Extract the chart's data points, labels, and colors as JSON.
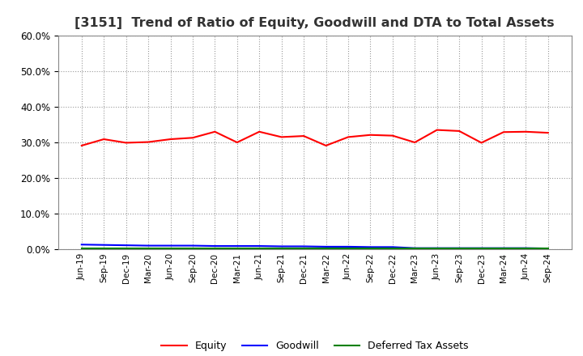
{
  "title": "[3151]  Trend of Ratio of Equity, Goodwill and DTA to Total Assets",
  "x_labels": [
    "Jun-19",
    "Sep-19",
    "Dec-19",
    "Mar-20",
    "Jun-20",
    "Sep-20",
    "Dec-20",
    "Mar-21",
    "Jun-21",
    "Sep-21",
    "Dec-21",
    "Mar-22",
    "Jun-22",
    "Sep-22",
    "Dec-22",
    "Mar-23",
    "Jun-23",
    "Sep-23",
    "Dec-23",
    "Mar-24",
    "Jun-24",
    "Sep-24"
  ],
  "equity": [
    0.291,
    0.309,
    0.299,
    0.301,
    0.309,
    0.313,
    0.33,
    0.3,
    0.33,
    0.315,
    0.318,
    0.291,
    0.315,
    0.321,
    0.319,
    0.3,
    0.335,
    0.332,
    0.299,
    0.329,
    0.33,
    0.327
  ],
  "goodwill": [
    0.013,
    0.012,
    0.011,
    0.01,
    0.01,
    0.01,
    0.009,
    0.009,
    0.009,
    0.008,
    0.008,
    0.007,
    0.007,
    0.006,
    0.006,
    0.003,
    0.003,
    0.003,
    0.003,
    0.003,
    0.003,
    0.002
  ],
  "dta": [
    0.003,
    0.003,
    0.003,
    0.003,
    0.003,
    0.003,
    0.003,
    0.003,
    0.003,
    0.003,
    0.003,
    0.003,
    0.003,
    0.003,
    0.003,
    0.003,
    0.003,
    0.003,
    0.003,
    0.003,
    0.003,
    0.003
  ],
  "equity_color": "#FF0000",
  "goodwill_color": "#0000FF",
  "dta_color": "#008000",
  "ylim": [
    0.0,
    0.6
  ],
  "yticks": [
    0.0,
    0.1,
    0.2,
    0.3,
    0.4,
    0.5,
    0.6
  ],
  "bg_color": "#FFFFFF",
  "plot_bg_color": "#FFFFFF",
  "grid_color": "#999999",
  "title_fontsize": 11.5,
  "legend_labels": [
    "Equity",
    "Goodwill",
    "Deferred Tax Assets"
  ]
}
